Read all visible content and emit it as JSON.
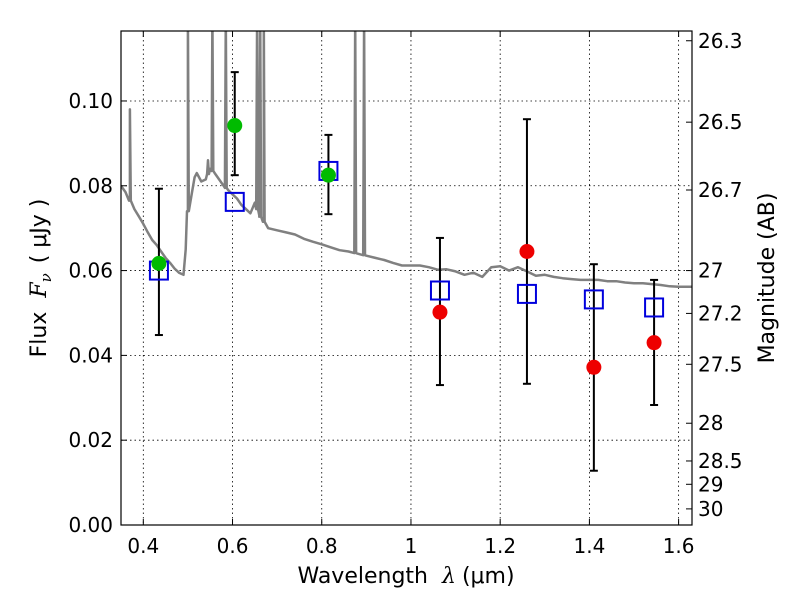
{
  "chart_data": {
    "type": "scatter",
    "xlabel": "Wavelength",
    "xlabel_symbol": "λ",
    "xlabel_unit": "(μm)",
    "ylabel": "Flux",
    "ylabel_symbol": "F",
    "ylabel_subscript": "ν",
    "ylabel_unit": "( μJy )",
    "ylabel_right": "Magnitude (AB)",
    "xlim": [
      0.35,
      1.63
    ],
    "ylim": [
      0.0,
      0.1165
    ],
    "grid": true,
    "grid_style": "dotted",
    "x_ticks": [
      0.4,
      0.6,
      0.8,
      1.0,
      1.2,
      1.4,
      1.6
    ],
    "x_tick_labels": [
      "0.4",
      "0.6",
      "0.8",
      "1",
      "1.2",
      "1.4",
      "1.6"
    ],
    "y_ticks": [
      0.0,
      0.02,
      0.04,
      0.06,
      0.08,
      0.1
    ],
    "y_tick_labels": [
      "0.00",
      "0.02",
      "0.04",
      "0.06",
      "0.08",
      "0.10"
    ],
    "right_axis_ticks": [
      {
        "label": "26.3",
        "flux": 0.1142
      },
      {
        "label": "26.5",
        "flux": 0.095
      },
      {
        "label": "26.7",
        "flux": 0.079
      },
      {
        "label": "27",
        "flux": 0.06
      },
      {
        "label": "27.2",
        "flux": 0.0499
      },
      {
        "label": "27.5",
        "flux": 0.0379
      },
      {
        "label": "28",
        "flux": 0.024
      },
      {
        "label": "28.5",
        "flux": 0.0151
      },
      {
        "label": "29",
        "flux": 0.0096
      },
      {
        "label": "30",
        "flux": 0.0038
      }
    ],
    "colors": {
      "model": "#808080",
      "observed_green": "#00bb00",
      "observed_red": "#ee0000",
      "model_photometry": "#0000dd",
      "errorbar": "#000000"
    },
    "series": [
      {
        "kind": "model_spectrum",
        "x": [
          0.35,
          0.36,
          0.37,
          0.38,
          0.39,
          0.4,
          0.41,
          0.42,
          0.43,
          0.44,
          0.45,
          0.46,
          0.47,
          0.48,
          0.49,
          0.495,
          0.5,
          0.51,
          0.515,
          0.52,
          0.53,
          0.54,
          0.55,
          0.56,
          0.57,
          0.58,
          0.59,
          0.6,
          0.61,
          0.62,
          0.63,
          0.64,
          0.65,
          0.66,
          0.67,
          0.68,
          0.7,
          0.72,
          0.74,
          0.76,
          0.78,
          0.8,
          0.82,
          0.84,
          0.86,
          0.88,
          0.9,
          0.92,
          0.94,
          0.96,
          0.98,
          1.0,
          1.02,
          1.04,
          1.06,
          1.08,
          1.1,
          1.12,
          1.14,
          1.16,
          1.18,
          1.2,
          1.22,
          1.24,
          1.26,
          1.28,
          1.3,
          1.32,
          1.34,
          1.36,
          1.38,
          1.4,
          1.42,
          1.44,
          1.46,
          1.48,
          1.5,
          1.52,
          1.54,
          1.56,
          1.58,
          1.6,
          1.63
        ],
        "y": [
          0.08,
          0.0785,
          0.0765,
          0.0745,
          0.0728,
          0.071,
          0.069,
          0.0672,
          0.066,
          0.0645,
          0.063,
          0.0618,
          0.0605,
          0.0595,
          0.059,
          0.065,
          0.074,
          0.079,
          0.082,
          0.083,
          0.081,
          0.0815,
          0.084,
          0.083,
          0.0815,
          0.08,
          0.079,
          0.078,
          0.077,
          0.0755,
          0.0745,
          0.0735,
          0.076,
          0.073,
          0.0715,
          0.07,
          0.0695,
          0.069,
          0.0685,
          0.0675,
          0.0668,
          0.0662,
          0.0655,
          0.0648,
          0.0645,
          0.064,
          0.0635,
          0.063,
          0.0625,
          0.0618,
          0.0612,
          0.0612,
          0.0612,
          0.0608,
          0.0602,
          0.0603,
          0.0598,
          0.059,
          0.0595,
          0.0585,
          0.0608,
          0.061,
          0.06,
          0.0608,
          0.0598,
          0.0588,
          0.059,
          0.0585,
          0.0582,
          0.058,
          0.0578,
          0.0578,
          0.0578,
          0.0575,
          0.0575,
          0.0572,
          0.057,
          0.057,
          0.0568,
          0.0566,
          0.0563,
          0.0562,
          0.0562
        ],
        "emission_spikes": [
          {
            "x": 0.37,
            "peak": 0.098
          },
          {
            "x": 0.5,
            "peak": 0.12
          },
          {
            "x": 0.545,
            "peak": 0.086
          },
          {
            "x": 0.555,
            "peak": 0.12
          },
          {
            "x": 0.585,
            "peak": 0.12
          },
          {
            "x": 0.655,
            "peak": 0.12
          },
          {
            "x": 0.662,
            "peak": 0.12
          },
          {
            "x": 0.67,
            "peak": 0.12
          },
          {
            "x": 0.875,
            "peak": 0.12
          },
          {
            "x": 0.895,
            "peak": 0.12
          }
        ]
      },
      {
        "kind": "observed_detections",
        "marker": "circle",
        "color": "observed_green",
        "x": [
          0.435,
          0.605,
          0.815
        ],
        "y": [
          0.0617,
          0.0942,
          0.0825
        ]
      },
      {
        "kind": "observed_upper",
        "marker": "circle",
        "color": "observed_red",
        "x": [
          1.065,
          1.26,
          1.41,
          1.545
        ],
        "y": [
          0.0502,
          0.0645,
          0.0372,
          0.043
        ]
      },
      {
        "kind": "model_photometry",
        "marker": "square_open",
        "color": "model_photometry",
        "x": [
          0.435,
          0.605,
          0.815,
          1.065,
          1.26,
          1.41,
          1.545
        ],
        "y": [
          0.06,
          0.0762,
          0.0835,
          0.0553,
          0.0545,
          0.0532,
          0.0513
        ]
      }
    ],
    "errorbars": [
      {
        "x": 0.435,
        "low": 0.0448,
        "high": 0.0793
      },
      {
        "x": 0.605,
        "low": 0.0825,
        "high": 0.1068
      },
      {
        "x": 0.815,
        "low": 0.0733,
        "high": 0.092
      },
      {
        "x": 1.065,
        "low": 0.033,
        "high": 0.0677
      },
      {
        "x": 1.26,
        "low": 0.0333,
        "high": 0.0957
      },
      {
        "x": 1.41,
        "low": 0.0128,
        "high": 0.0615
      },
      {
        "x": 1.545,
        "low": 0.0283,
        "high": 0.0578
      }
    ]
  }
}
